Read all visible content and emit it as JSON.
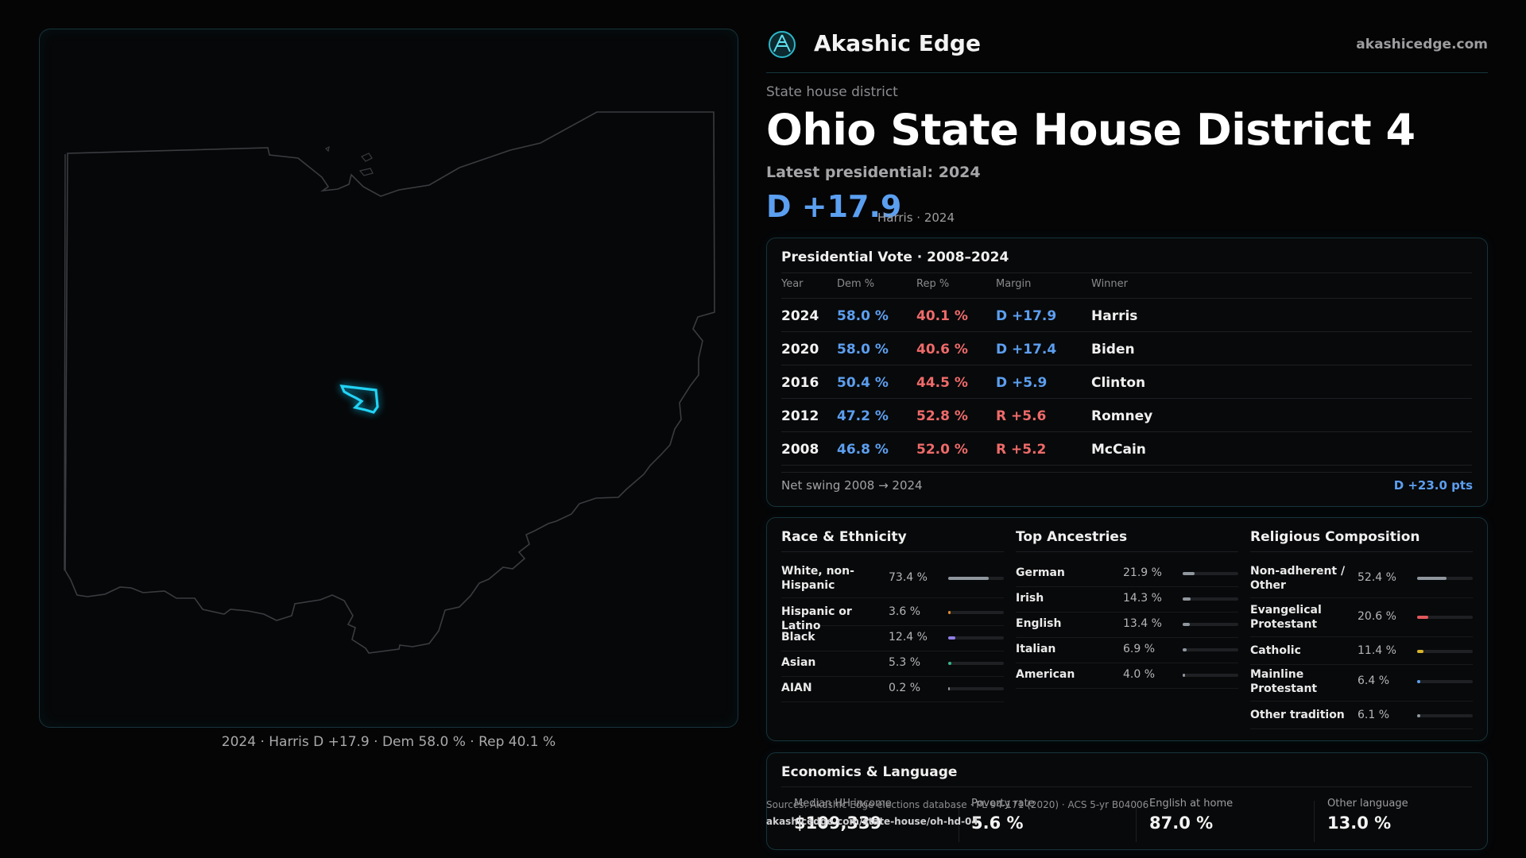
{
  "map": {
    "caption": "2024 · Harris D +17.9 · Dem 58.0 % · Rep 40.1 %"
  },
  "brand": {
    "name": "Akashic Edge",
    "url": "akashicedge.com"
  },
  "header": {
    "kicker": "State house district",
    "title": "Ohio State House District 4",
    "latest": "Latest presidential: 2024",
    "margin": "D +17.9",
    "margin_sub": "Harris · 2024"
  },
  "presidential": {
    "title": "Presidential Vote · 2008–2024",
    "columns": [
      "Year",
      "Dem %",
      "Rep %",
      "Margin",
      "Winner"
    ],
    "rows": [
      {
        "year": "2024",
        "dem": "58.0 %",
        "rep": "40.1 %",
        "margin": "D +17.9",
        "party": "D",
        "winner": "Harris"
      },
      {
        "year": "2020",
        "dem": "58.0 %",
        "rep": "40.6 %",
        "margin": "D +17.4",
        "party": "D",
        "winner": "Biden"
      },
      {
        "year": "2016",
        "dem": "50.4 %",
        "rep": "44.5 %",
        "margin": "D +5.9",
        "party": "D",
        "winner": "Clinton"
      },
      {
        "year": "2012",
        "dem": "47.2 %",
        "rep": "52.8 %",
        "margin": "R +5.6",
        "party": "R",
        "winner": "Romney"
      },
      {
        "year": "2008",
        "dem": "46.8 %",
        "rep": "52.0 %",
        "margin": "R +5.2",
        "party": "R",
        "winner": "McCain"
      }
    ],
    "swing_label": "Net swing 2008 → 2024",
    "swing_value": "D +23.0 pts"
  },
  "race": {
    "title": "Race & Ethnicity",
    "items": [
      {
        "label": "White, non-Hispanic",
        "value": "73.4 %",
        "fraction": 0.734,
        "color": "#8f969e"
      },
      {
        "label": "Hispanic or Latino",
        "value": "3.6 %",
        "fraction": 0.036,
        "color": "#e08a2e"
      },
      {
        "label": "Black",
        "value": "12.4 %",
        "fraction": 0.124,
        "color": "#8f7ee6"
      },
      {
        "label": "Asian",
        "value": "5.3 %",
        "fraction": 0.053,
        "color": "#37b58c"
      },
      {
        "label": "AIAN",
        "value": "0.2 %",
        "fraction": 0.002,
        "color": "#8f969e"
      }
    ]
  },
  "ancestry": {
    "title": "Top Ancestries",
    "items": [
      {
        "label": "German",
        "value": "21.9 %",
        "fraction": 0.219,
        "color": "#8f969e"
      },
      {
        "label": "Irish",
        "value": "14.3 %",
        "fraction": 0.143,
        "color": "#8f969e"
      },
      {
        "label": "English",
        "value": "13.4 %",
        "fraction": 0.134,
        "color": "#8f969e"
      },
      {
        "label": "Italian",
        "value": "6.9 %",
        "fraction": 0.069,
        "color": "#8f969e"
      },
      {
        "label": "American",
        "value": "4.0 %",
        "fraction": 0.04,
        "color": "#8f969e"
      }
    ]
  },
  "religion": {
    "title": "Religious Composition",
    "items": [
      {
        "label": "Non-adherent / Other",
        "value": "52.4 %",
        "fraction": 0.524,
        "color": "#8f969e"
      },
      {
        "label": "Evangelical Protestant",
        "value": "20.6 %",
        "fraction": 0.206,
        "color": "#e0585c"
      },
      {
        "label": "Catholic",
        "value": "11.4 %",
        "fraction": 0.114,
        "color": "#d8b42a"
      },
      {
        "label": "Mainline Protestant",
        "value": "6.4 %",
        "fraction": 0.064,
        "color": "#5c9ff0"
      },
      {
        "label": "Other tradition",
        "value": "6.1 %",
        "fraction": 0.061,
        "color": "#8f969e"
      }
    ]
  },
  "economics": {
    "title": "Economics & Language",
    "cells": [
      {
        "label": "Median HH income",
        "value": "$109,339"
      },
      {
        "label": "Poverty rate",
        "value": "5.6 %"
      },
      {
        "label": "English at home",
        "value": "87.0 %"
      },
      {
        "label": "Other language",
        "value": "13.0 %"
      }
    ]
  },
  "footer": {
    "sources": "Sources: Akashic Edge elections database · PL 94-171 (2020) · ACS 5-yr B04006",
    "url": "akashicedge.com/state-house/oh-hd-04"
  }
}
